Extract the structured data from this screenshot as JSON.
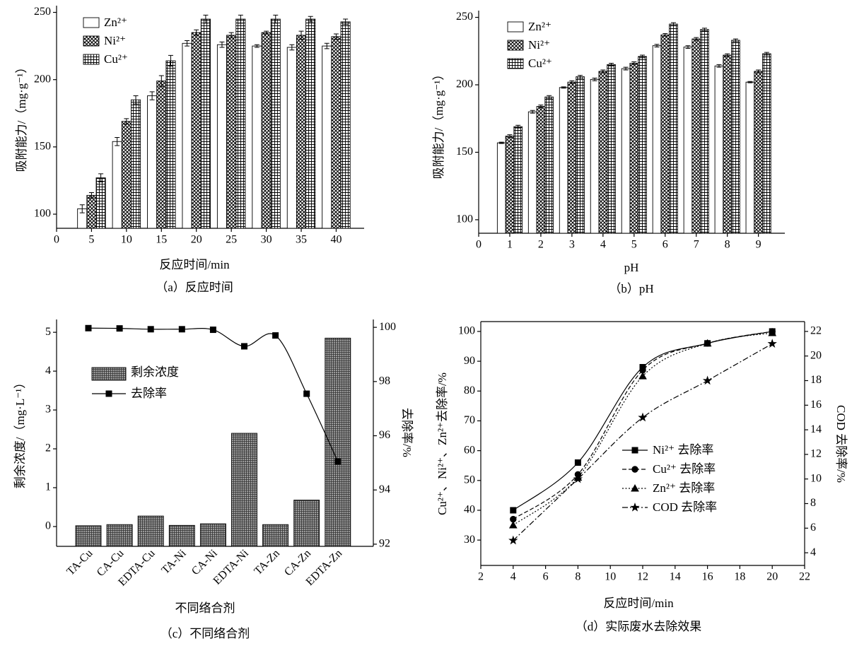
{
  "chart_data": [
    {
      "type": "bar",
      "caption": "（a）反应时间",
      "xlabel": "反应时间/min",
      "ylabel": "吸附能力/（mg·g⁻¹）",
      "x": [
        5,
        10,
        15,
        20,
        25,
        30,
        35,
        40
      ],
      "series": [
        {
          "name": "Zn²⁺",
          "color": "#000000",
          "pattern": "none",
          "values": [
            104,
            154,
            188,
            227,
            226,
            225,
            224,
            225
          ],
          "errors": [
            3,
            3,
            3,
            2,
            2,
            1,
            2,
            2
          ]
        },
        {
          "name": "Ni²⁺",
          "color": "#000000",
          "pattern": "crosshatch",
          "values": [
            114,
            169,
            199,
            235,
            233,
            235,
            233,
            232
          ],
          "errors": [
            2,
            2,
            4,
            2,
            2,
            1,
            3,
            2
          ]
        },
        {
          "name": "Cu²⁺",
          "color": "#000000",
          "pattern": "grid",
          "values": [
            127,
            185,
            214,
            245,
            245,
            245,
            245,
            243
          ],
          "errors": [
            3,
            3,
            4,
            3,
            3,
            3,
            2,
            2
          ]
        }
      ],
      "xlim": [
        0,
        44
      ],
      "xticks": [
        0,
        5,
        10,
        15,
        20,
        25,
        30,
        35,
        40
      ],
      "ylim": [
        89.5,
        255
      ],
      "yticks": [
        100,
        150,
        200,
        250
      ]
    },
    {
      "type": "bar",
      "caption": "（b）pH",
      "xlabel": "pH",
      "ylabel": "吸附能力/（mg·g⁻¹）",
      "x": [
        1,
        2,
        3,
        4,
        5,
        6,
        7,
        8,
        9
      ],
      "series": [
        {
          "name": "Zn²⁺",
          "color": "#000000",
          "pattern": "none",
          "values": [
            157,
            180,
            198,
            204,
            212,
            229,
            228,
            214,
            202
          ],
          "errors": [
            0.5,
            1,
            0.5,
            1,
            1,
            1,
            1,
            1,
            0.5
          ]
        },
        {
          "name": "Ni²⁺",
          "color": "#000000",
          "pattern": "crosshatch",
          "values": [
            162,
            184,
            202,
            210,
            216,
            237,
            234,
            222,
            210
          ],
          "errors": [
            1,
            1,
            1,
            1,
            1,
            1,
            1,
            1,
            1
          ]
        },
        {
          "name": "Cu²⁺",
          "color": "#000000",
          "pattern": "grid",
          "values": [
            169,
            191,
            206,
            215,
            221,
            245,
            241,
            233,
            223
          ],
          "errors": [
            1,
            1,
            1,
            1,
            1,
            1,
            1,
            1,
            1
          ]
        }
      ],
      "xlim": [
        0,
        9.85
      ],
      "xticks": [
        0,
        1,
        2,
        3,
        4,
        5,
        6,
        7,
        8,
        9
      ],
      "ylim": [
        90,
        255
      ],
      "yticks": [
        100,
        150,
        200,
        250
      ]
    },
    {
      "type": "bar_line",
      "caption": "（c）不同络合剂",
      "xlabel": "不同络合剂",
      "ylabel": "剩余浓度/（mg·L⁻¹）",
      "y2label": "去除率/%",
      "categories": [
        "TA-Cu",
        "CA-Cu",
        "EDTA-Cu",
        "TA-Ni",
        "CA-Ni",
        "EDTA-Ni",
        "TA-Zn",
        "CA-Zn",
        "EDTA-Zn"
      ],
      "series": [
        {
          "name": "剩余浓度",
          "color": "#000000",
          "pattern": "dots",
          "values": [
            0.02,
            0.05,
            0.27,
            0.03,
            0.07,
            2.4,
            0.05,
            0.68,
            4.85
          ]
        },
        {
          "name": "去除率",
          "color": "#000000",
          "axis": "y2",
          "marker": "square",
          "dash": "solid",
          "values": [
            99.97,
            99.96,
            99.93,
            99.93,
            99.91,
            99.3,
            99.7,
            97.55,
            95.05
          ]
        }
      ],
      "ylim": [
        -0.51,
        5.33
      ],
      "yticks": [
        0,
        1,
        2,
        3,
        4,
        5
      ],
      "y2lim": [
        91.92,
        100.29
      ],
      "y2ticks": [
        92,
        94,
        96,
        98,
        100
      ]
    },
    {
      "type": "line",
      "caption": "（d）实际废水去除效果",
      "xlabel": "反应时间/min",
      "ylabel": "Cu²⁺、Ni²⁺、Zn²⁺去除率/%",
      "y2label": "COD 去除率/%",
      "x": [
        4,
        8,
        12,
        16,
        20
      ],
      "series": [
        {
          "name": "Ni²⁺ 去除率",
          "color": "#000000",
          "marker": "square",
          "dash": "solid",
          "values": [
            40,
            56,
            88,
            96,
            100
          ]
        },
        {
          "name": "Cu²⁺ 去除率",
          "color": "#000000",
          "marker": "circle",
          "dash": "dash",
          "values": [
            37,
            52,
            87,
            96,
            100
          ]
        },
        {
          "name": "Zn²⁺ 去除率",
          "color": "#000000",
          "marker": "triangle",
          "dash": "dot",
          "values": [
            35,
            51,
            85,
            96,
            99.5
          ]
        },
        {
          "name": "COD 去除率",
          "color": "#000000",
          "marker": "star",
          "dash": "dashdot",
          "axis": "y2",
          "values": [
            5,
            10,
            15,
            18,
            21
          ]
        }
      ],
      "xlim": [
        2,
        22
      ],
      "xticks": [
        2,
        4,
        6,
        8,
        10,
        12,
        14,
        16,
        18,
        20,
        22
      ],
      "ylim": [
        21.5,
        103.3
      ],
      "yticks": [
        30,
        40,
        50,
        60,
        70,
        80,
        90,
        100
      ],
      "y2lim": [
        2.97,
        22.8
      ],
      "y2ticks": [
        4,
        6,
        8,
        10,
        12,
        14,
        16,
        18,
        20,
        22
      ]
    }
  ]
}
